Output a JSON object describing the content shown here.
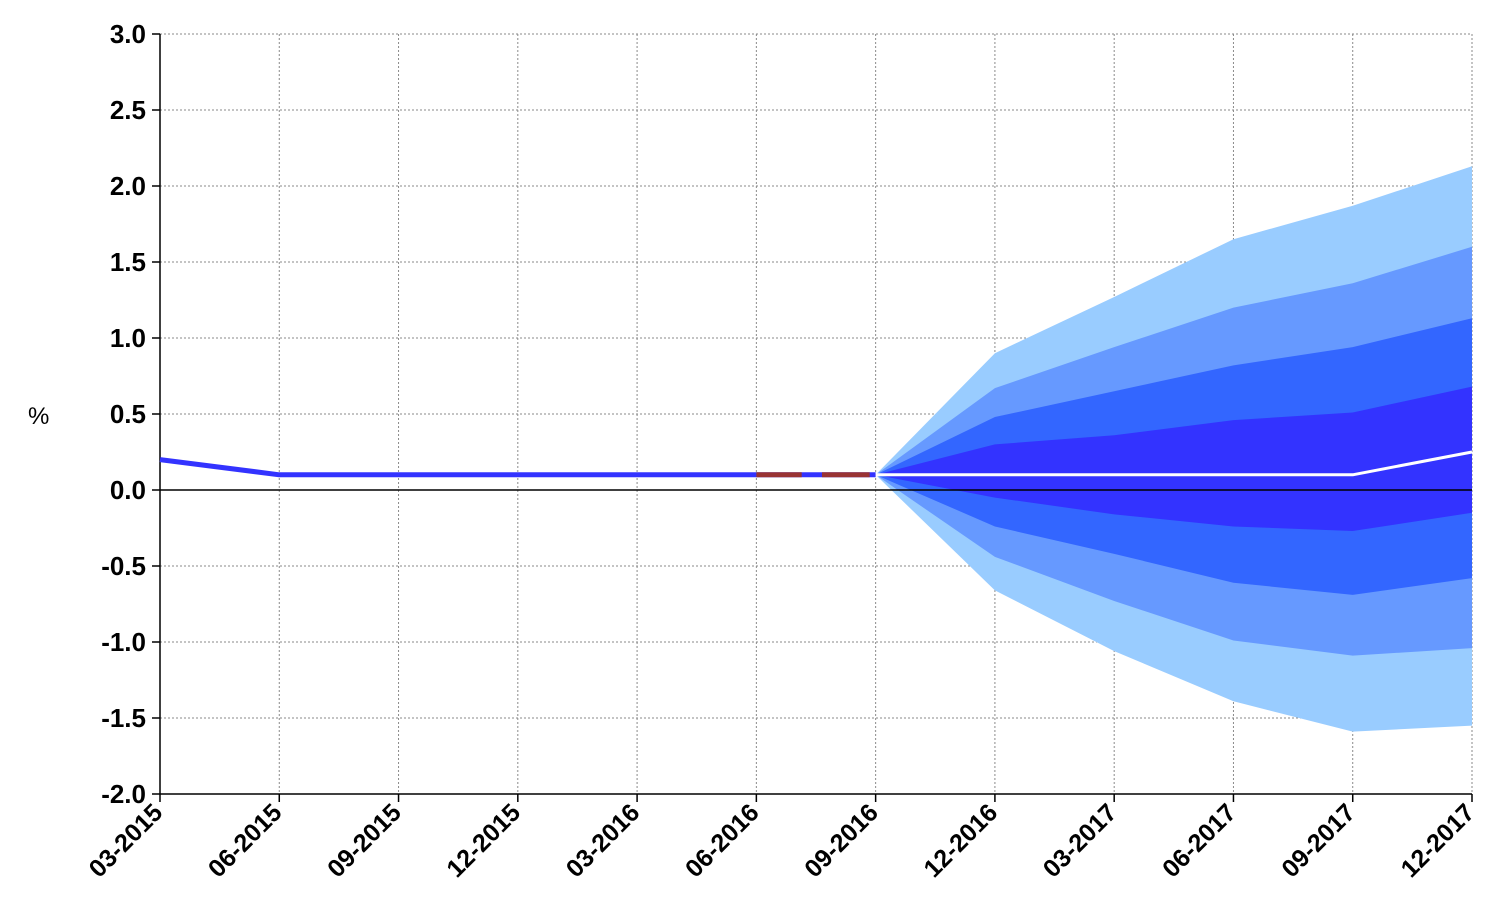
{
  "chart_data": {
    "type": "area",
    "title": "",
    "xlabel": "",
    "ylabel": "%",
    "ylim": [
      -2.0,
      3.0
    ],
    "y_ticks": [
      "3.0",
      "2.5",
      "2.0",
      "1.5",
      "1.0",
      "0.5",
      "0.0",
      "-0.5",
      "-1.0",
      "-1.5",
      "-2.0"
    ],
    "y_tick_values": [
      3.0,
      2.5,
      2.0,
      1.5,
      1.0,
      0.5,
      0.0,
      -0.5,
      -1.0,
      -1.5,
      -2.0
    ],
    "categories": [
      "03-2015",
      "06-2015",
      "09-2015",
      "12-2015",
      "03-2016",
      "06-2016",
      "09-2016",
      "12-2016",
      "03-2017",
      "06-2017",
      "09-2017",
      "12-2017"
    ],
    "grid": true,
    "historical": {
      "name": "",
      "color": "#3333ff",
      "values": [
        0.2,
        0.1,
        0.1,
        0.1,
        0.1,
        0.1,
        0.1
      ]
    },
    "historical_alt_segments": {
      "color": "#993333",
      "ranges": [
        [
          5.0,
          5.38
        ],
        [
          5.55,
          5.95
        ]
      ]
    },
    "projection": {
      "name": "",
      "color": "#ffffff",
      "start_index": 6,
      "values": [
        0.1,
        0.1,
        0.1,
        0.1,
        0.1,
        0.25
      ]
    },
    "fan_bands": {
      "start_index": 6,
      "colors": [
        "#99ccff",
        "#6699ff",
        "#3366ff",
        "#3333ff"
      ],
      "bounds": [
        {
          "upper": [
            0.1,
            0.9,
            1.27,
            1.65,
            1.87,
            2.13
          ],
          "lower": [
            0.1,
            -0.66,
            -1.06,
            -1.39,
            -1.59,
            -1.55
          ]
        },
        {
          "upper": [
            0.1,
            0.67,
            0.94,
            1.2,
            1.36,
            1.6
          ],
          "lower": [
            0.1,
            -0.44,
            -0.73,
            -0.99,
            -1.09,
            -1.04
          ]
        },
        {
          "upper": [
            0.1,
            0.48,
            0.65,
            0.82,
            0.94,
            1.13
          ],
          "lower": [
            0.1,
            -0.24,
            -0.42,
            -0.61,
            -0.69,
            -0.58
          ]
        },
        {
          "upper": [
            0.1,
            0.3,
            0.36,
            0.46,
            0.51,
            0.68
          ],
          "lower": [
            0.1,
            -0.05,
            -0.16,
            -0.24,
            -0.27,
            -0.15
          ]
        }
      ]
    }
  }
}
